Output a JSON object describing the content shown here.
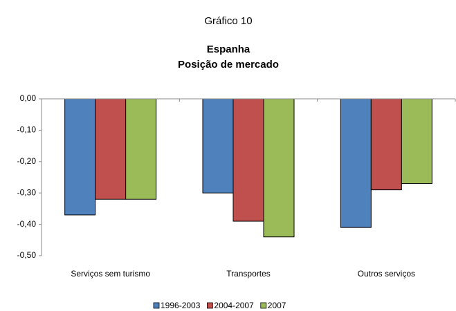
{
  "chart_data": {
    "type": "bar",
    "caption": "Gráfico 10",
    "title": "Espanha",
    "subtitle": "Posição de mercado",
    "categories": [
      "Serviços sem turismo",
      "Transportes",
      "Outros serviços"
    ],
    "series": [
      {
        "name": "1996-2003",
        "color": "#4f81bd",
        "values": [
          -0.37,
          -0.3,
          -0.41
        ]
      },
      {
        "name": "2004-2007",
        "color": "#c0504d",
        "values": [
          -0.32,
          -0.39,
          -0.29
        ]
      },
      {
        "name": "2007",
        "color": "#9bbb59",
        "values": [
          -0.32,
          -0.44,
          -0.27
        ]
      }
    ],
    "ylim": [
      -0.5,
      0
    ],
    "yticks": [
      {
        "value": 0,
        "label": "0,00"
      },
      {
        "value": -0.1,
        "label": "-0,10"
      },
      {
        "value": -0.2,
        "label": "-0,20"
      },
      {
        "value": -0.3,
        "label": "-0,30"
      },
      {
        "value": -0.4,
        "label": "-0,40"
      },
      {
        "value": -0.5,
        "label": "-0,50"
      }
    ],
    "legend": "bottom"
  }
}
